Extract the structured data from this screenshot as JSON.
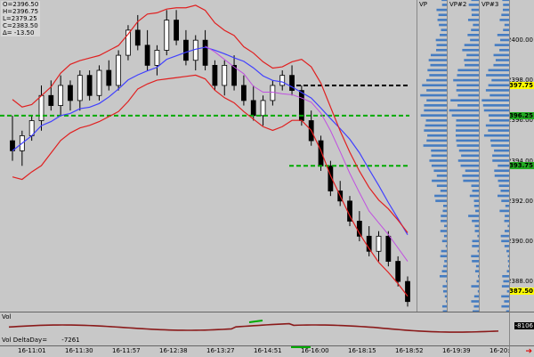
{
  "ohlc": {
    "open": "O=2396.50",
    "high": "H=2396.75",
    "low": "L=2379.25",
    "close": "C=2383.50",
    "delta": "Δ= -13.50"
  },
  "columns": {
    "vp": "VP",
    "vp2": "VP#2",
    "vp3": "VP#3"
  },
  "price_axis": {
    "ticks": [
      "2400.00",
      "2398.00",
      "2396.00",
      "2394.00",
      "2392.00",
      "2390.00",
      "2388.00"
    ],
    "markers": [
      {
        "text": "2397.75",
        "bg": "#ffff00"
      },
      {
        "text": "2396.25",
        "bg": "#22aa22"
      },
      {
        "text": "2393.75",
        "bg": "#22aa22"
      },
      {
        "text": "2387.50",
        "bg": "#ffff00"
      }
    ]
  },
  "indicator": {
    "title": "Vol",
    "name": "Vol DeltaDay=",
    "value": "-7261",
    "axis_value": "-8106"
  },
  "time_axis": [
    "16-11:01",
    "16-11:30",
    "16-11:57",
    "16-12:38",
    "16-13:27",
    "16-14:51",
    "16-16:00",
    "16-18:15",
    "16-18:52",
    "16-19:39",
    "16-20:01"
  ],
  "colors": {
    "background": "#c8c8c8",
    "up_candle": "#ffffff",
    "down_candle": "#000000",
    "ma_red": "#e02020",
    "ma_blue": "#4040ff",
    "ma_purple": "#c050e0",
    "level_green": "#00aa00",
    "volume_profile": "#2e6fc0",
    "delta_line": "#8a1a1a"
  },
  "chart_data": {
    "type": "candlestick",
    "ylim": [
      2386.5,
      2402.0
    ],
    "candles": [
      [
        2395.0,
        2396.25,
        2394.0,
        2394.5
      ],
      [
        2394.5,
        2395.5,
        2393.75,
        2395.25
      ],
      [
        2395.25,
        2396.25,
        2395.0,
        2396.0
      ],
      [
        2396.0,
        2397.75,
        2395.5,
        2397.25
      ],
      [
        2397.25,
        2398.0,
        2396.5,
        2396.75
      ],
      [
        2396.75,
        2398.25,
        2396.25,
        2397.75
      ],
      [
        2397.75,
        2398.0,
        2396.5,
        2397.0
      ],
      [
        2397.0,
        2398.5,
        2396.5,
        2398.25
      ],
      [
        2398.25,
        2398.5,
        2397.0,
        2397.25
      ],
      [
        2397.25,
        2398.75,
        2397.0,
        2398.5
      ],
      [
        2398.5,
        2399.0,
        2397.5,
        2397.75
      ],
      [
        2397.75,
        2399.5,
        2397.5,
        2399.25
      ],
      [
        2399.25,
        2400.75,
        2399.0,
        2400.5
      ],
      [
        2400.5,
        2401.25,
        2399.5,
        2399.75
      ],
      [
        2399.75,
        2400.5,
        2398.5,
        2398.75
      ],
      [
        2398.75,
        2399.75,
        2398.25,
        2399.5
      ],
      [
        2399.5,
        2401.5,
        2399.25,
        2401.0
      ],
      [
        2401.0,
        2401.5,
        2399.75,
        2400.0
      ],
      [
        2400.0,
        2400.5,
        2398.75,
        2399.0
      ],
      [
        2399.0,
        2400.25,
        2398.5,
        2400.0
      ],
      [
        2400.0,
        2400.5,
        2398.5,
        2398.75
      ],
      [
        2398.75,
        2399.0,
        2397.5,
        2397.75
      ],
      [
        2397.75,
        2399.0,
        2397.25,
        2398.75
      ],
      [
        2398.75,
        2399.25,
        2397.5,
        2397.75
      ],
      [
        2397.75,
        2398.25,
        2396.75,
        2397.0
      ],
      [
        2397.0,
        2397.75,
        2396.0,
        2396.25
      ],
      [
        2396.25,
        2397.25,
        2395.75,
        2397.0
      ],
      [
        2397.0,
        2398.0,
        2396.75,
        2397.75
      ],
      [
        2397.75,
        2398.5,
        2397.5,
        2398.25
      ],
      [
        2398.25,
        2398.75,
        2397.25,
        2397.5
      ],
      [
        2397.5,
        2397.75,
        2395.75,
        2396.0
      ],
      [
        2396.0,
        2396.5,
        2394.75,
        2395.0
      ],
      [
        2395.0,
        2395.25,
        2393.5,
        2393.75
      ],
      [
        2393.75,
        2394.0,
        2392.25,
        2392.5
      ],
      [
        2392.5,
        2393.0,
        2391.75,
        2392.0
      ],
      [
        2392.0,
        2392.25,
        2390.75,
        2391.0
      ],
      [
        2391.0,
        2391.5,
        2390.0,
        2390.25
      ],
      [
        2390.25,
        2390.75,
        2389.25,
        2389.5
      ],
      [
        2389.5,
        2390.5,
        2389.0,
        2390.25
      ],
      [
        2390.25,
        2390.5,
        2388.75,
        2389.0
      ],
      [
        2389.0,
        2389.25,
        2387.75,
        2388.0
      ],
      [
        2388.0,
        2388.25,
        2386.75,
        2387.0
      ]
    ],
    "levels": [
      {
        "price": 2397.75,
        "color": "#000000",
        "style": "dashed"
      },
      {
        "price": 2396.25,
        "color": "#00aa00",
        "style": "dashed"
      },
      {
        "price": 2393.75,
        "color": "#00aa00",
        "style": "dashed"
      }
    ]
  }
}
